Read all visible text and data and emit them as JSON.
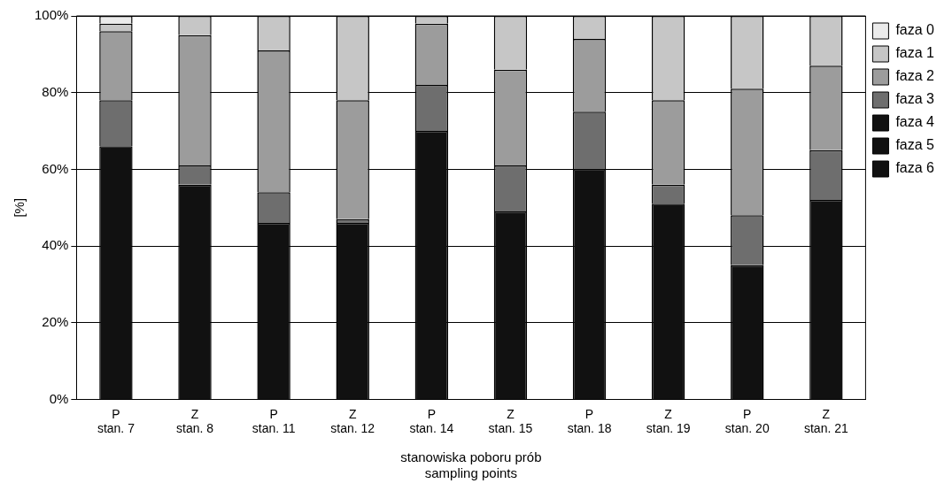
{
  "chart_data": {
    "type": "bar",
    "stacked": true,
    "categories": [
      "P\nstan. 7",
      "Z\nstan. 8",
      "P\nstan. 11",
      "Z\nstan. 12",
      "P\nstan. 14",
      "Z\nstan. 15",
      "P\nstan. 18",
      "Z\nstan. 19",
      "P\nstan. 20",
      "Z\nstan. 21"
    ],
    "xlabel": "stanowiska poboru prób\nsampling points",
    "ylabel": "[%]",
    "ylim": [
      0,
      100
    ],
    "yticks": [
      {
        "value": 0,
        "label": "0%"
      },
      {
        "value": 20,
        "label": "20%"
      },
      {
        "value": 40,
        "label": "40%"
      },
      {
        "value": 60,
        "label": "60%"
      },
      {
        "value": 80,
        "label": "80%"
      },
      {
        "value": 100,
        "label": "100%"
      }
    ],
    "grid": "y",
    "legend": "right",
    "series": [
      {
        "name": "faza 6",
        "color": "#111111",
        "values": [
          66,
          56,
          46,
          46,
          70,
          49,
          60,
          51,
          35,
          52
        ]
      },
      {
        "name": "faza 5",
        "color": "#111111",
        "values": [
          0,
          0,
          0,
          0,
          0,
          0,
          0,
          0,
          0,
          0
        ]
      },
      {
        "name": "faza 4",
        "color": "#111111",
        "values": [
          0,
          0,
          0,
          0,
          0,
          0,
          0,
          0,
          0,
          0
        ]
      },
      {
        "name": "faza 3",
        "color": "#6e6e6e",
        "values": [
          12,
          5,
          8,
          1,
          12,
          12,
          15,
          5,
          13,
          13
        ]
      },
      {
        "name": "faza 2",
        "color": "#9c9c9c",
        "values": [
          18,
          34,
          37,
          31,
          16,
          25,
          19,
          22,
          33,
          22
        ]
      },
      {
        "name": "faza 1",
        "color": "#c6c6c6",
        "values": [
          2,
          5,
          9,
          22,
          2,
          14,
          6,
          22,
          19,
          13
        ]
      },
      {
        "name": "faza 0",
        "color": "#ebebeb",
        "values": [
          2,
          0,
          0,
          0,
          0,
          0,
          0,
          0,
          0,
          0
        ]
      }
    ]
  }
}
